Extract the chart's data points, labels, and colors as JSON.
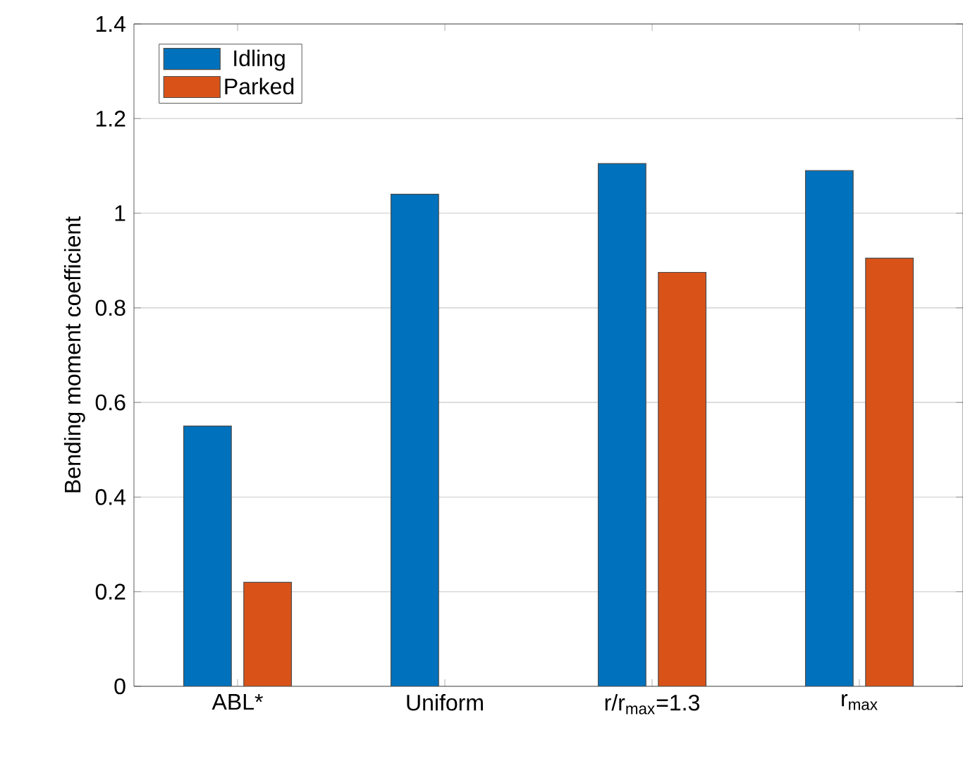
{
  "chart_data": {
    "type": "bar",
    "ylabel": "Bending moment coefficient",
    "categories": [
      "ABL*",
      "Uniform",
      "r/r$_{max}$=1.3",
      "r$_{max}$"
    ],
    "series": [
      {
        "name": "Idling",
        "color": "#0072bd",
        "values": [
          0.55,
          1.04,
          1.105,
          1.09
        ]
      },
      {
        "name": "Parked",
        "color": "#d95319",
        "values": [
          0.22,
          null,
          0.875,
          0.905
        ]
      }
    ],
    "ylim": [
      0,
      1.4
    ],
    "yticks": [
      0,
      0.2,
      0.4,
      0.6,
      0.8,
      1,
      1.2,
      1.4
    ],
    "grid": "y",
    "legend": "top left"
  }
}
